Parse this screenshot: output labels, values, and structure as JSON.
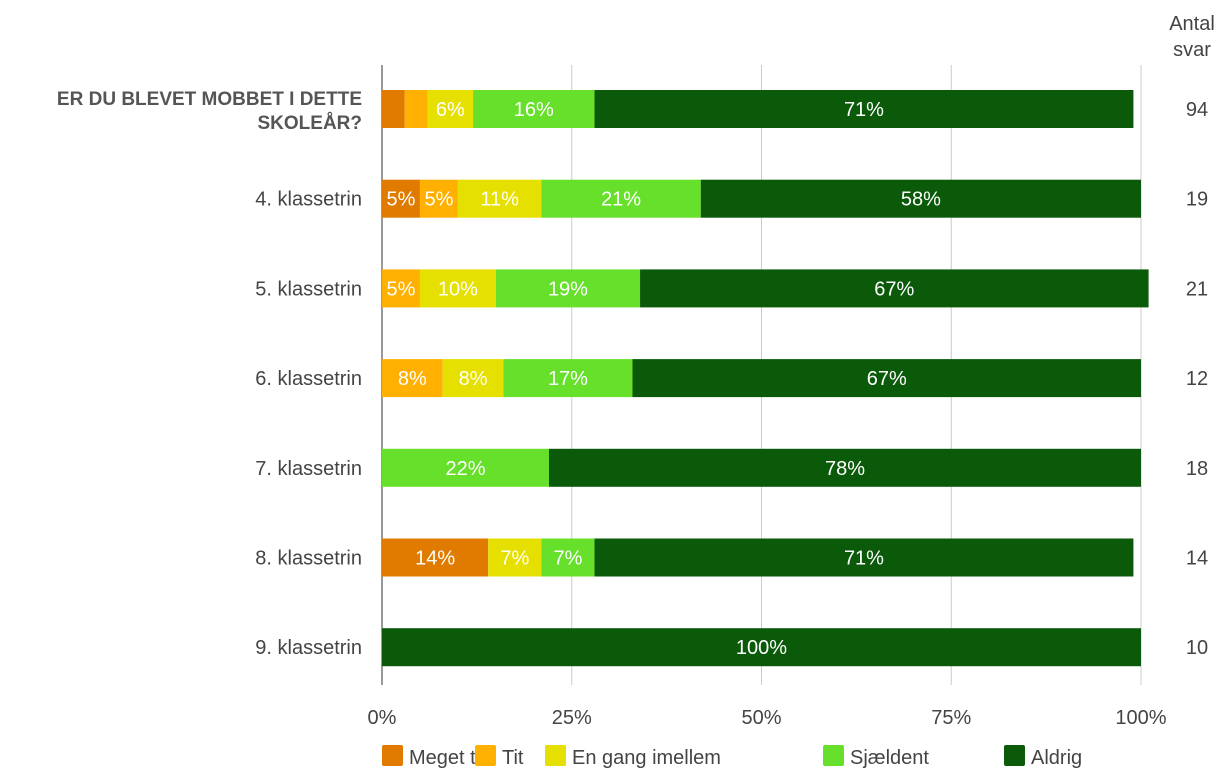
{
  "chart_data": {
    "type": "bar",
    "orientation": "horizontal",
    "stacked": true,
    "percent_scale": true,
    "question": "ER DU BLEVET MOBBET I DETTE SKOLEÅR?",
    "count_header": [
      "Antal",
      "svar"
    ],
    "categories": [
      "ER DU BLEVET MOBBET I DETTE SKOLEÅR?",
      "4. klassetrin",
      "5. klassetrin",
      "6. klassetrin",
      "7. klassetrin",
      "8. klassetrin",
      "9. klassetrin"
    ],
    "counts": [
      "94",
      "19",
      "21",
      "12",
      "18",
      "14",
      "10"
    ],
    "series": [
      {
        "name": "Meget tit",
        "color": "#e07b00",
        "values": [
          3,
          5,
          0,
          0,
          0,
          14,
          0
        ],
        "labels": [
          "",
          "5%",
          "",
          "",
          "",
          "14%",
          ""
        ]
      },
      {
        "name": "Tit",
        "color": "#ffb000",
        "values": [
          3,
          5,
          5,
          8,
          0,
          0,
          0
        ],
        "labels": [
          "",
          "5%",
          "5%",
          "8%",
          "",
          "",
          ""
        ]
      },
      {
        "name": "En gang imellem",
        "color": "#e6e000",
        "values": [
          6,
          11,
          10,
          8,
          0,
          7,
          0
        ],
        "labels": [
          "6%",
          "11%",
          "10%",
          "8%",
          "",
          "7%",
          ""
        ]
      },
      {
        "name": "Sjældent",
        "color": "#66e02a",
        "values": [
          16,
          21,
          19,
          17,
          22,
          7,
          0
        ],
        "labels": [
          "16%",
          "21%",
          "19%",
          "17%",
          "22%",
          "7%",
          ""
        ]
      },
      {
        "name": "Aldrig",
        "color": "#0a5a0a",
        "values": [
          71,
          58,
          67,
          67,
          78,
          71,
          100
        ],
        "labels": [
          "71%",
          "58%",
          "67%",
          "67%",
          "78%",
          "71%",
          "100%"
        ]
      }
    ],
    "xlim": [
      0,
      100
    ],
    "xticks": [
      "0%",
      "25%",
      "50%",
      "75%",
      "100%"
    ],
    "grid": true,
    "legend_position": "bottom"
  }
}
